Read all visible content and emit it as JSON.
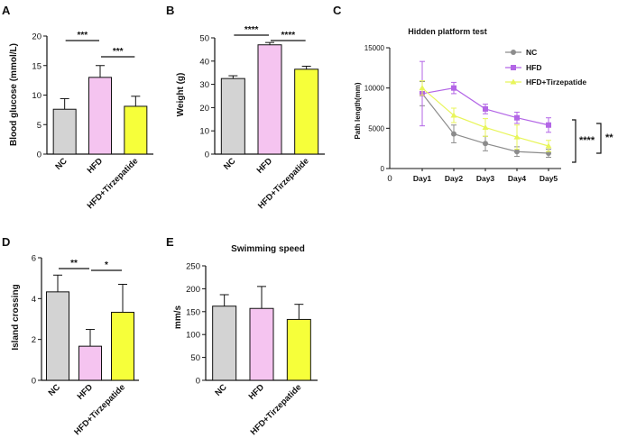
{
  "colors": {
    "nc": "#d3d3d3",
    "hfd": "#f5c4f0",
    "tirz": "#f6ff3a",
    "line_nc": "#8c8c8c",
    "line_hfd": "#b366e6",
    "line_tirz": "#e8f55a"
  },
  "chart_data": [
    {
      "id": "A",
      "panel_label": "A",
      "type": "bar",
      "categories": [
        "NC",
        "HFD",
        "HFD+Tirzepatide"
      ],
      "values": [
        7.6,
        13.0,
        8.1
      ],
      "errors": [
        1.8,
        2.0,
        1.7
      ],
      "ylabel": "Blood glucose (mmol/L)",
      "ylim": [
        0,
        20
      ],
      "yticks": [
        0,
        5,
        10,
        15,
        20
      ],
      "significance": [
        {
          "from": 0,
          "to": 1,
          "label": "***"
        },
        {
          "from": 1,
          "to": 2,
          "label": "***"
        }
      ]
    },
    {
      "id": "B",
      "panel_label": "B",
      "type": "bar",
      "categories": [
        "NC",
        "HFD",
        "HFD+Tirzepatide"
      ],
      "values": [
        32.5,
        47.0,
        36.5
      ],
      "errors": [
        1.2,
        1.0,
        1.3
      ],
      "ylabel": "Weight (g)",
      "ylim": [
        0,
        50
      ],
      "yticks": [
        0,
        10,
        20,
        30,
        40,
        50
      ],
      "significance": [
        {
          "from": 0,
          "to": 1,
          "label": "****"
        },
        {
          "from": 1,
          "to": 2,
          "label": "****"
        }
      ]
    },
    {
      "id": "C",
      "panel_label": "C",
      "type": "line",
      "title": "Hidden platform test",
      "x": [
        "Day1",
        "Day2",
        "Day3",
        "Day4",
        "Day5"
      ],
      "ylabel": "Path length(mm)",
      "ylim": [
        0,
        15000
      ],
      "yticks": [
        0,
        5000,
        10000,
        15000
      ],
      "x_zero_label": "0",
      "series": [
        {
          "name": "NC",
          "values": [
            9300,
            4300,
            3100,
            2100,
            1900
          ],
          "errors": [
            1500,
            1100,
            900,
            600,
            500
          ]
        },
        {
          "name": "HFD",
          "values": [
            9300,
            10000,
            7400,
            6300,
            5400
          ],
          "errors": [
            4000,
            700,
            600,
            700,
            900
          ]
        },
        {
          "name": "HFD+Tirzepatide",
          "values": [
            10000,
            6600,
            5100,
            3900,
            2800
          ],
          "errors": [
            900,
            900,
            1100,
            1500,
            700
          ]
        }
      ],
      "significance": [
        "****",
        "**"
      ]
    },
    {
      "id": "D",
      "panel_label": "D",
      "type": "bar",
      "categories": [
        "NC",
        "HFD",
        "HFD+Tirzepatide"
      ],
      "values": [
        4.33,
        1.67,
        3.33
      ],
      "errors": [
        0.82,
        0.82,
        1.37
      ],
      "ylabel": "Island crossing",
      "ylim": [
        0,
        6
      ],
      "yticks": [
        0,
        2,
        4,
        6
      ],
      "significance": [
        {
          "from": 0,
          "to": 1,
          "label": "**"
        },
        {
          "from": 1,
          "to": 2,
          "label": "*"
        }
      ]
    },
    {
      "id": "E",
      "panel_label": "E",
      "type": "bar",
      "title": "Swimming speed",
      "categories": [
        "NC",
        "HFD",
        "HFD+Tirzepatide"
      ],
      "values": [
        162,
        157,
        133
      ],
      "errors": [
        25,
        48,
        33
      ],
      "ylabel": "mm/s",
      "ylim": [
        0,
        250
      ],
      "yticks": [
        0,
        50,
        100,
        150,
        200,
        250
      ],
      "significance": []
    }
  ]
}
